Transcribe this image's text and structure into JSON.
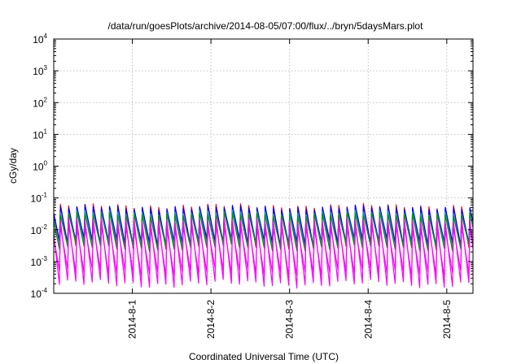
{
  "chart_data": {
    "type": "line",
    "title": "/data/run/goesPlots/archive/2014-08-05/07:00/flux/../bryn/5daysMars.plot",
    "xlabel": "Coordinated Universal Time (UTC)",
    "ylabel": "cGy/day",
    "yscale": "log",
    "ylim": [
      0.0001,
      10000
    ],
    "xlim": [
      "2014-07-31T00:00",
      "2014-08-05T08:00"
    ],
    "grid": true,
    "y_ticks": [
      {
        "base": "10",
        "exp": "-4"
      },
      {
        "base": "10",
        "exp": "-3"
      },
      {
        "base": "10",
        "exp": "-2"
      },
      {
        "base": "10",
        "exp": "-1"
      },
      {
        "base": "10",
        "exp": "0"
      },
      {
        "base": "10",
        "exp": "1"
      },
      {
        "base": "10",
        "exp": "2"
      },
      {
        "base": "10",
        "exp": "3"
      },
      {
        "base": "10",
        "exp": "4"
      }
    ],
    "x_ticks": [
      {
        "label": "2014-8-1",
        "t": "2014-08-01T00:00"
      },
      {
        "label": "2014-8-2",
        "t": "2014-08-02T00:00"
      },
      {
        "label": "2014-8-3",
        "t": "2014-08-03T00:00"
      },
      {
        "label": "2014-8-4",
        "t": "2014-08-04T00:00"
      },
      {
        "label": "2014-8-5",
        "t": "2014-08-05T00:00"
      }
    ],
    "pattern": "periodic sawtooth",
    "period_hours": 2.5,
    "series": [
      {
        "color": "#ff0000",
        "peak": 0.055,
        "trough": 0.0033
      },
      {
        "color": "#0000ff",
        "peak": 0.05,
        "trough": 0.004
      },
      {
        "color": "#00aaaa",
        "peak": 0.035,
        "trough": 0.003
      },
      {
        "color": "#009900",
        "peak": 0.03,
        "trough": 0.0028
      },
      {
        "color": "#ff00ff",
        "peak": 0.02,
        "trough": 0.0002
      },
      {
        "color": "#ff00ff",
        "peak": 0.012,
        "trough": 0.00045
      }
    ]
  }
}
